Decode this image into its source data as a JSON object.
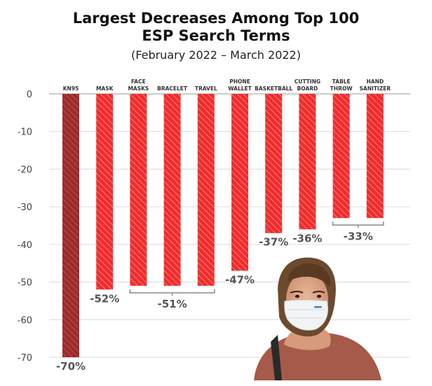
{
  "chart_data": {
    "type": "bar",
    "title_lines": [
      "Largest Decreases Among Top 100",
      "ESP Search Terms"
    ],
    "subtitle": "(February 2022 – March 2022)",
    "categories": [
      [
        "KN95"
      ],
      [
        "MASK"
      ],
      [
        "FACE",
        "MASKS"
      ],
      [
        "BRACELET"
      ],
      [
        "TRAVEL"
      ],
      [
        "PHONE",
        "WALLET"
      ],
      [
        "BASKETBALL"
      ],
      [
        "CUTTING",
        "BOARD"
      ],
      [
        "TABLE",
        "THROW"
      ],
      [
        "HAND",
        "SANITIZER"
      ]
    ],
    "values": [
      -70,
      -52,
      -51,
      -51,
      -51,
      -47,
      -37,
      -36,
      -33,
      -33
    ],
    "data_labels": [
      {
        "text": "-70%",
        "bars": [
          0
        ]
      },
      {
        "text": "-52%",
        "bars": [
          1
        ]
      },
      {
        "text": "-51%",
        "bars": [
          2,
          3,
          4
        ]
      },
      {
        "text": "-47%",
        "bars": [
          5
        ]
      },
      {
        "text": "-37%",
        "bars": [
          6
        ]
      },
      {
        "text": "-36%",
        "bars": [
          7
        ]
      },
      {
        "text": "-33%",
        "bars": [
          8,
          9
        ]
      }
    ],
    "yticks": [
      0,
      -10,
      -20,
      -30,
      -40,
      -50,
      -60,
      -70
    ],
    "ylim": [
      -70,
      0
    ],
    "grid": true,
    "colors": {
      "highlight": "#9b2a2a",
      "bar": "#ef2d2d",
      "grid": "#d9d9d9",
      "label": "#555555"
    }
  }
}
